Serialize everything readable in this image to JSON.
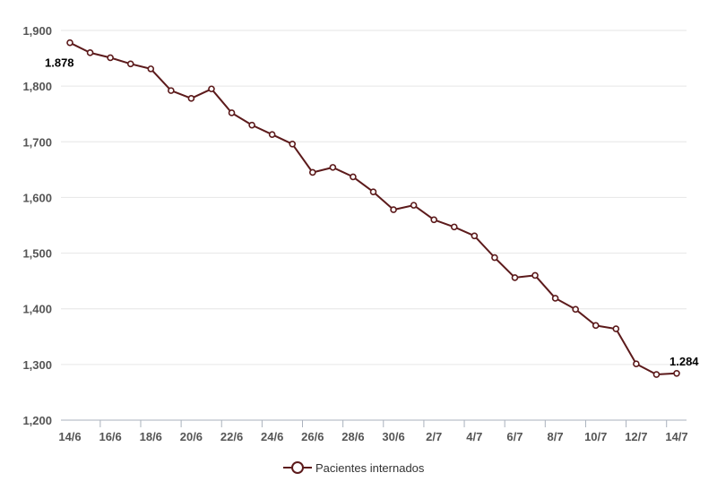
{
  "chart_data": {
    "type": "line",
    "x": [
      "14/6",
      "15/6",
      "16/6",
      "17/6",
      "18/6",
      "19/6",
      "20/6",
      "21/6",
      "22/6",
      "23/6",
      "24/6",
      "25/6",
      "26/6",
      "27/6",
      "28/6",
      "29/6",
      "30/6",
      "1/7",
      "2/7",
      "3/7",
      "4/7",
      "5/7",
      "6/7",
      "7/7",
      "8/7",
      "9/7",
      "10/7",
      "11/7",
      "12/7",
      "13/7",
      "14/7"
    ],
    "x_tick_labels": [
      "14/6",
      "16/6",
      "18/6",
      "20/6",
      "22/6",
      "24/6",
      "26/6",
      "28/6",
      "30/6",
      "2/7",
      "4/7",
      "6/7",
      "8/7",
      "10/7",
      "12/7",
      "14/7"
    ],
    "series": [
      {
        "name": "Pacientes internados",
        "color": "#5c1a1b",
        "values": [
          1878,
          1860,
          1851,
          1840,
          1831,
          1792,
          1778,
          1795,
          1752,
          1730,
          1713,
          1696,
          1645,
          1654,
          1637,
          1610,
          1578,
          1586,
          1560,
          1547,
          1531,
          1492,
          1456,
          1460,
          1419,
          1399,
          1370,
          1364,
          1301,
          1282,
          1284
        ]
      }
    ],
    "ylim": [
      1200,
      1900
    ],
    "y_ticks": [
      1200,
      1300,
      1400,
      1500,
      1600,
      1700,
      1800,
      1900
    ],
    "y_tick_labels": [
      "1,200",
      "1,300",
      "1,400",
      "1,500",
      "1,600",
      "1,700",
      "1,800",
      "1,900"
    ],
    "data_labels": [
      {
        "index": 0,
        "text": "1.878"
      },
      {
        "index": 30,
        "text": "1.284"
      }
    ],
    "grid": true,
    "legend": "bottom-center",
    "title": "",
    "xlabel": "",
    "ylabel": ""
  }
}
